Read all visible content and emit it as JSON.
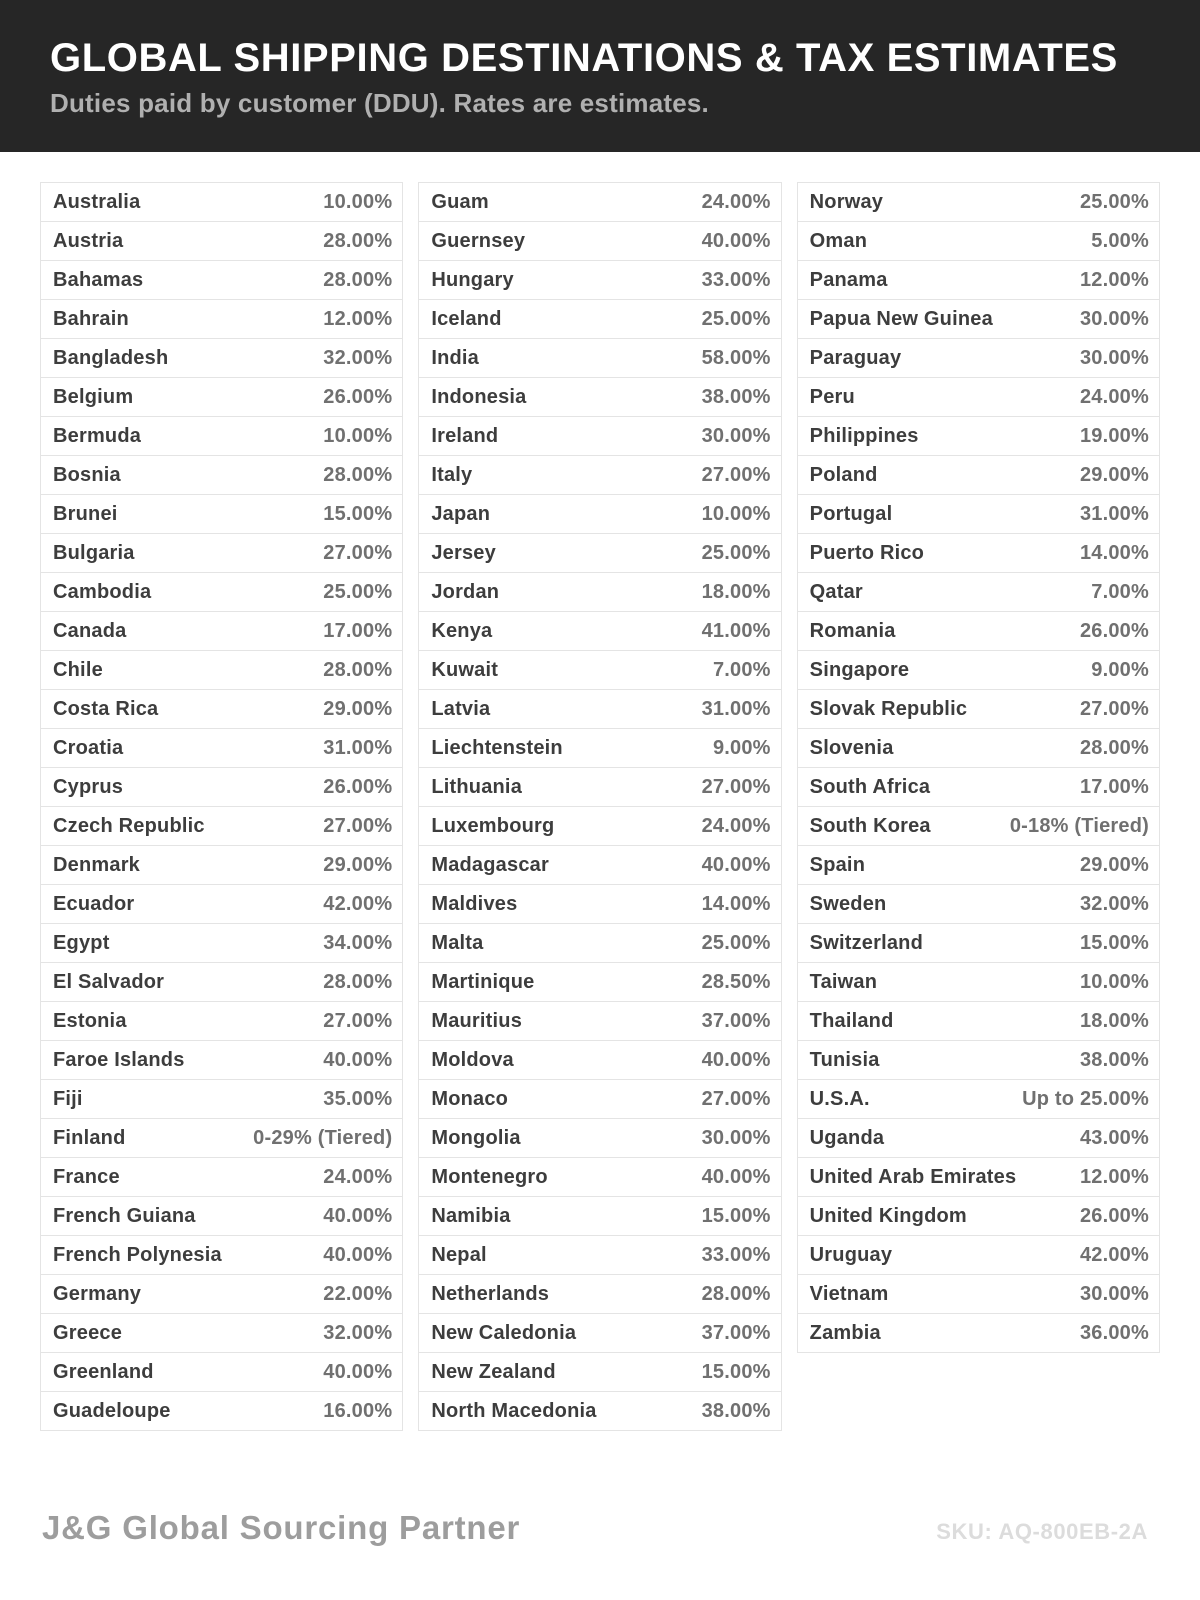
{
  "header": {
    "title": "GLOBAL SHIPPING DESTINATIONS & TAX ESTIMATES",
    "subtitle": "Duties paid by customer (DDU). Rates are estimates."
  },
  "colors": {
    "header_bg": "#262626",
    "title_text": "#ffffff",
    "subtitle_text": "#b0b0b0",
    "country_text": "#3d3d3d",
    "rate_text": "#707070",
    "row_border": "#e4e4e4",
    "brand_text": "#9d9d9d",
    "sku_text": "#dcdcdc"
  },
  "table": {
    "columns": [
      {
        "rows": [
          {
            "country": "Australia",
            "rate": "10.00%"
          },
          {
            "country": "Austria",
            "rate": "28.00%"
          },
          {
            "country": "Bahamas",
            "rate": "28.00%"
          },
          {
            "country": "Bahrain",
            "rate": "12.00%"
          },
          {
            "country": "Bangladesh",
            "rate": "32.00%"
          },
          {
            "country": "Belgium",
            "rate": "26.00%"
          },
          {
            "country": "Bermuda",
            "rate": "10.00%"
          },
          {
            "country": "Bosnia",
            "rate": "28.00%"
          },
          {
            "country": "Brunei",
            "rate": "15.00%"
          },
          {
            "country": "Bulgaria",
            "rate": "27.00%"
          },
          {
            "country": "Cambodia",
            "rate": "25.00%"
          },
          {
            "country": "Canada",
            "rate": "17.00%"
          },
          {
            "country": "Chile",
            "rate": "28.00%"
          },
          {
            "country": "Costa Rica",
            "rate": "29.00%"
          },
          {
            "country": "Croatia",
            "rate": "31.00%"
          },
          {
            "country": "Cyprus",
            "rate": "26.00%"
          },
          {
            "country": "Czech Republic",
            "rate": "27.00%"
          },
          {
            "country": "Denmark",
            "rate": "29.00%"
          },
          {
            "country": "Ecuador",
            "rate": "42.00%"
          },
          {
            "country": "Egypt",
            "rate": "34.00%"
          },
          {
            "country": "El Salvador",
            "rate": "28.00%"
          },
          {
            "country": "Estonia",
            "rate": "27.00%"
          },
          {
            "country": "Faroe Islands",
            "rate": "40.00%"
          },
          {
            "country": "Fiji",
            "rate": "35.00%"
          },
          {
            "country": "Finland",
            "rate": "0-29% (Tiered)"
          },
          {
            "country": "France",
            "rate": "24.00%"
          },
          {
            "country": "French Guiana",
            "rate": "40.00%"
          },
          {
            "country": "French Polynesia",
            "rate": "40.00%"
          },
          {
            "country": "Germany",
            "rate": "22.00%"
          },
          {
            "country": "Greece",
            "rate": "32.00%"
          },
          {
            "country": "Greenland",
            "rate": "40.00%"
          },
          {
            "country": "Guadeloupe",
            "rate": "16.00%"
          }
        ]
      },
      {
        "rows": [
          {
            "country": "Guam",
            "rate": "24.00%"
          },
          {
            "country": "Guernsey",
            "rate": "40.00%"
          },
          {
            "country": "Hungary",
            "rate": "33.00%"
          },
          {
            "country": "Iceland",
            "rate": "25.00%"
          },
          {
            "country": "India",
            "rate": "58.00%"
          },
          {
            "country": "Indonesia",
            "rate": "38.00%"
          },
          {
            "country": "Ireland",
            "rate": "30.00%"
          },
          {
            "country": "Italy",
            "rate": "27.00%"
          },
          {
            "country": "Japan",
            "rate": "10.00%"
          },
          {
            "country": "Jersey",
            "rate": "25.00%"
          },
          {
            "country": "Jordan",
            "rate": "18.00%"
          },
          {
            "country": "Kenya",
            "rate": "41.00%"
          },
          {
            "country": "Kuwait",
            "rate": "7.00%"
          },
          {
            "country": "Latvia",
            "rate": "31.00%"
          },
          {
            "country": "Liechtenstein",
            "rate": "9.00%"
          },
          {
            "country": "Lithuania",
            "rate": "27.00%"
          },
          {
            "country": "Luxembourg",
            "rate": "24.00%"
          },
          {
            "country": "Madagascar",
            "rate": "40.00%"
          },
          {
            "country": "Maldives",
            "rate": "14.00%"
          },
          {
            "country": "Malta",
            "rate": "25.00%"
          },
          {
            "country": "Martinique",
            "rate": "28.50%"
          },
          {
            "country": "Mauritius",
            "rate": "37.00%"
          },
          {
            "country": "Moldova",
            "rate": "40.00%"
          },
          {
            "country": "Monaco",
            "rate": "27.00%"
          },
          {
            "country": "Mongolia",
            "rate": "30.00%"
          },
          {
            "country": "Montenegro",
            "rate": "40.00%"
          },
          {
            "country": "Namibia",
            "rate": "15.00%"
          },
          {
            "country": "Nepal",
            "rate": "33.00%"
          },
          {
            "country": "Netherlands",
            "rate": "28.00%"
          },
          {
            "country": "New Caledonia",
            "rate": "37.00%"
          },
          {
            "country": "New Zealand",
            "rate": "15.00%"
          },
          {
            "country": "North Macedonia",
            "rate": "38.00%"
          }
        ]
      },
      {
        "rows": [
          {
            "country": "Norway",
            "rate": "25.00%"
          },
          {
            "country": "Oman",
            "rate": "5.00%"
          },
          {
            "country": "Panama",
            "rate": "12.00%"
          },
          {
            "country": "Papua New Guinea",
            "rate": "30.00%"
          },
          {
            "country": "Paraguay",
            "rate": "30.00%"
          },
          {
            "country": "Peru",
            "rate": "24.00%"
          },
          {
            "country": "Philippines",
            "rate": "19.00%"
          },
          {
            "country": "Poland",
            "rate": "29.00%"
          },
          {
            "country": "Portugal",
            "rate": "31.00%"
          },
          {
            "country": "Puerto Rico",
            "rate": "14.00%"
          },
          {
            "country": "Qatar",
            "rate": "7.00%"
          },
          {
            "country": "Romania",
            "rate": "26.00%"
          },
          {
            "country": "Singapore",
            "rate": "9.00%"
          },
          {
            "country": "Slovak Republic",
            "rate": "27.00%"
          },
          {
            "country": "Slovenia",
            "rate": "28.00%"
          },
          {
            "country": "South Africa",
            "rate": "17.00%"
          },
          {
            "country": "South Korea",
            "rate": "0-18% (Tiered)"
          },
          {
            "country": "Spain",
            "rate": "29.00%"
          },
          {
            "country": "Sweden",
            "rate": "32.00%"
          },
          {
            "country": "Switzerland",
            "rate": "15.00%"
          },
          {
            "country": "Taiwan",
            "rate": "10.00%"
          },
          {
            "country": "Thailand",
            "rate": "18.00%"
          },
          {
            "country": "Tunisia",
            "rate": "38.00%"
          },
          {
            "country": "U.S.A.",
            "rate": "Up to 25.00%"
          },
          {
            "country": "Uganda",
            "rate": "43.00%"
          },
          {
            "country": "United Arab Emirates",
            "rate": "12.00%"
          },
          {
            "country": "United Kingdom",
            "rate": "26.00%"
          },
          {
            "country": "Uruguay",
            "rate": "42.00%"
          },
          {
            "country": "Vietnam",
            "rate": "30.00%"
          },
          {
            "country": "Zambia",
            "rate": "36.00%"
          }
        ]
      }
    ]
  },
  "footer": {
    "brand": "J&G Global Sourcing Partner",
    "sku": "SKU: AQ-800EB-2A"
  }
}
